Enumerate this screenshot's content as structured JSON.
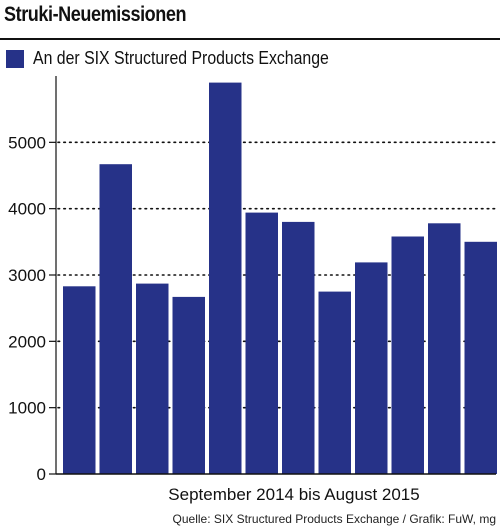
{
  "title": "Struki-Neuemissionen",
  "source": "Quelle: SIX Structured Products Exchange / Grafik: FuW, mg",
  "colors": {
    "bar": "#263288",
    "grid": "#111111",
    "axis": "#111111"
  },
  "chart_data": {
    "type": "bar",
    "title": "Struki-Neuemissionen",
    "xlabel": "September 2014 bis August 2015",
    "ylabel": "",
    "categories": [
      "",
      "",
      "",
      "",
      "",
      "",
      "",
      "",
      "",
      "",
      "",
      ""
    ],
    "series": [
      {
        "name": "An der SIX Structured Products Exchange",
        "values": [
          2830,
          4670,
          2870,
          2670,
          5900,
          3940,
          3800,
          2750,
          3190,
          3580,
          3780,
          3500
        ]
      }
    ],
    "yticks": [
      0,
      1000,
      2000,
      3000,
      4000,
      5000
    ],
    "ylim": [
      0,
      6000
    ],
    "grid": true,
    "grid_style": "dotted",
    "legend_position": "top-left"
  }
}
